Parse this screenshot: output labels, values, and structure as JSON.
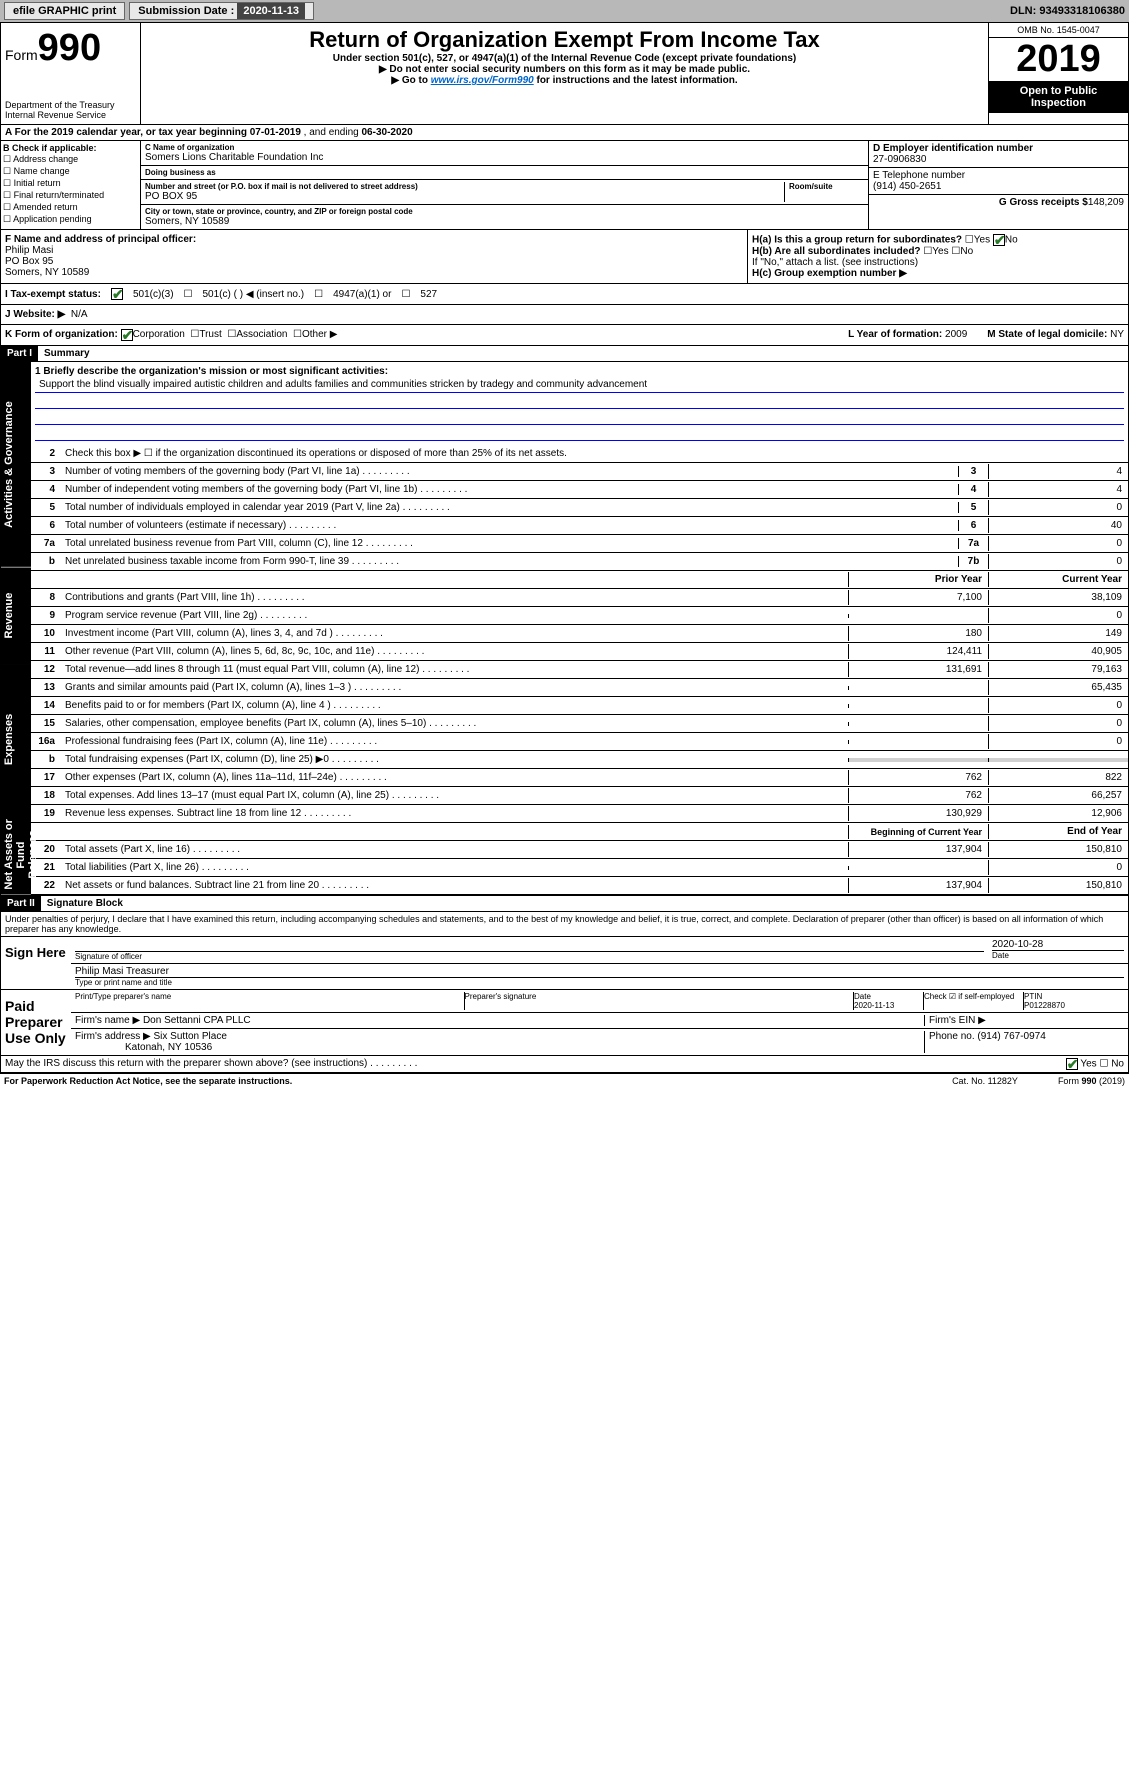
{
  "topbar": {
    "efile_label": "efile GRAPHIC print",
    "submission_label": "Submission Date :",
    "submission_date": "2020-11-13",
    "dln_label": "DLN:",
    "dln": "93493318106380"
  },
  "header": {
    "form_word": "Form",
    "form_num": "990",
    "dept": "Department of the Treasury\nInternal Revenue Service",
    "title": "Return of Organization Exempt From Income Tax",
    "sub1": "Under section 501(c), 527, or 4947(a)(1) of the Internal Revenue Code (except private foundations)",
    "sub2": "▶ Do not enter social security numbers on this form as it may be made public.",
    "sub3_pre": "▶ Go to ",
    "sub3_link": "www.irs.gov/Form990",
    "sub3_post": " for instructions and the latest information.",
    "omb": "OMB No. 1545-0047",
    "year": "2019",
    "inspection": "Open to Public Inspection"
  },
  "row_a": {
    "prefix": "A For the 2019 calendar year, or tax year beginning ",
    "begin": "07-01-2019",
    "mid": " , and ending ",
    "end": "06-30-2020"
  },
  "col_b": {
    "title": "B Check if applicable:",
    "items": [
      "Address change",
      "Name change",
      "Initial return",
      "Final return/terminated",
      "Amended return",
      "Application pending"
    ]
  },
  "col_c": {
    "name_lbl": "C Name of organization",
    "name": "Somers Lions Charitable Foundation Inc",
    "dba_lbl": "Doing business as",
    "addr_lbl": "Number and street (or P.O. box if mail is not delivered to street address)",
    "room_lbl": "Room/suite",
    "addr": "PO BOX 95",
    "city_lbl": "City or town, state or province, country, and ZIP or foreign postal code",
    "city": "Somers, NY  10589"
  },
  "col_d": {
    "ein_lbl": "D Employer identification number",
    "ein": "27-0906830",
    "phone_lbl": "E Telephone number",
    "phone": "(914) 450-2651",
    "gross_lbl": "G Gross receipts $",
    "gross": "148,209"
  },
  "officer": {
    "lbl": "F  Name and address of principal officer:",
    "name": "Philip Masi",
    "addr1": "PO Box 95",
    "addr2": "Somers, NY  10589"
  },
  "h": {
    "a_lbl": "H(a)  Is this a group return for subordinates?",
    "b_lbl": "H(b)  Are all subordinates included?",
    "b_note": "If \"No,\" attach a list. (see instructions)",
    "c_lbl": "H(c)  Group exemption number ▶",
    "yes": "Yes",
    "no": "No"
  },
  "tax_status": {
    "lbl": "I  Tax-exempt status:",
    "opt1": "501(c)(3)",
    "opt2": "501(c) (  ) ◀ (insert no.)",
    "opt3": "4947(a)(1) or",
    "opt4": "527"
  },
  "website": {
    "lbl": "J  Website: ▶",
    "val": "N/A"
  },
  "k_row": {
    "lbl": "K Form of organization:",
    "opts": [
      "Corporation",
      "Trust",
      "Association",
      "Other ▶"
    ],
    "l_lbl": "L Year of formation:",
    "l_val": "2009",
    "m_lbl": "M State of legal domicile:",
    "m_val": "NY"
  },
  "part1": {
    "header": "Part I",
    "title": "Summary",
    "mission_lbl": "1  Briefly describe the organization's mission or most significant activities:",
    "mission": "Support the blind visually impaired autistic children and adults families and communities stricken by tradegy and community advancement",
    "line2": "Check this box ▶ ☐  if the organization discontinued its operations or disposed of more than 25% of its net assets.",
    "sections": {
      "gov_label": "Activities & Governance",
      "rev_label": "Revenue",
      "exp_label": "Expenses",
      "net_label": "Net Assets or Fund Balances"
    },
    "lines_gov": [
      {
        "n": "3",
        "d": "Number of voting members of the governing body (Part VI, line 1a)",
        "c": "3",
        "v": "4"
      },
      {
        "n": "4",
        "d": "Number of independent voting members of the governing body (Part VI, line 1b)",
        "c": "4",
        "v": "4"
      },
      {
        "n": "5",
        "d": "Total number of individuals employed in calendar year 2019 (Part V, line 2a)",
        "c": "5",
        "v": "0"
      },
      {
        "n": "6",
        "d": "Total number of volunteers (estimate if necessary)",
        "c": "6",
        "v": "40"
      },
      {
        "n": "7a",
        "d": "Total unrelated business revenue from Part VIII, column (C), line 12",
        "c": "7a",
        "v": "0"
      },
      {
        "n": "b",
        "d": "Net unrelated business taxable income from Form 990-T, line 39",
        "c": "7b",
        "v": "0"
      }
    ],
    "col_prior": "Prior Year",
    "col_current": "Current Year",
    "lines_rev": [
      {
        "n": "8",
        "d": "Contributions and grants (Part VIII, line 1h)",
        "p": "7,100",
        "c": "38,109"
      },
      {
        "n": "9",
        "d": "Program service revenue (Part VIII, line 2g)",
        "p": "",
        "c": "0"
      },
      {
        "n": "10",
        "d": "Investment income (Part VIII, column (A), lines 3, 4, and 7d )",
        "p": "180",
        "c": "149"
      },
      {
        "n": "11",
        "d": "Other revenue (Part VIII, column (A), lines 5, 6d, 8c, 9c, 10c, and 11e)",
        "p": "124,411",
        "c": "40,905"
      },
      {
        "n": "12",
        "d": "Total revenue—add lines 8 through 11 (must equal Part VIII, column (A), line 12)",
        "p": "131,691",
        "c": "79,163"
      }
    ],
    "lines_exp": [
      {
        "n": "13",
        "d": "Grants and similar amounts paid (Part IX, column (A), lines 1–3 )",
        "p": "",
        "c": "65,435"
      },
      {
        "n": "14",
        "d": "Benefits paid to or for members (Part IX, column (A), line 4 )",
        "p": "",
        "c": "0"
      },
      {
        "n": "15",
        "d": "Salaries, other compensation, employee benefits (Part IX, column (A), lines 5–10)",
        "p": "",
        "c": "0"
      },
      {
        "n": "16a",
        "d": "Professional fundraising fees (Part IX, column (A), line 11e)",
        "p": "",
        "c": "0"
      },
      {
        "n": "b",
        "d": "Total fundraising expenses (Part IX, column (D), line 25) ▶0",
        "p": "shade",
        "c": "shade"
      },
      {
        "n": "17",
        "d": "Other expenses (Part IX, column (A), lines 11a–11d, 11f–24e)",
        "p": "762",
        "c": "822"
      },
      {
        "n": "18",
        "d": "Total expenses. Add lines 13–17 (must equal Part IX, column (A), line 25)",
        "p": "762",
        "c": "66,257"
      },
      {
        "n": "19",
        "d": "Revenue less expenses. Subtract line 18 from line 12",
        "p": "130,929",
        "c": "12,906"
      }
    ],
    "col_begin": "Beginning of Current Year",
    "col_end": "End of Year",
    "lines_net": [
      {
        "n": "20",
        "d": "Total assets (Part X, line 16)",
        "p": "137,904",
        "c": "150,810"
      },
      {
        "n": "21",
        "d": "Total liabilities (Part X, line 26)",
        "p": "",
        "c": "0"
      },
      {
        "n": "22",
        "d": "Net assets or fund balances. Subtract line 21 from line 20",
        "p": "137,904",
        "c": "150,810"
      }
    ]
  },
  "part2": {
    "header": "Part II",
    "title": "Signature Block",
    "perjury": "Under penalties of perjury, I declare that I have examined this return, including accompanying schedules and statements, and to the best of my knowledge and belief, it is true, correct, and complete. Declaration of preparer (other than officer) is based on all information of which preparer has any knowledge.",
    "sign_here": "Sign Here",
    "sig_officer_lbl": "Signature of officer",
    "date_lbl": "Date",
    "sig_date": "2020-10-28",
    "officer_name": "Philip Masi  Treasurer",
    "type_name_lbl": "Type or print name and title",
    "paid_prep": "Paid Preparer Use Only",
    "prep_name_lbl": "Print/Type preparer's name",
    "prep_sig_lbl": "Preparer's signature",
    "prep_date": "2020-11-13",
    "check_self": "Check ☑ if self-employed",
    "ptin_lbl": "PTIN",
    "ptin": "P01228870",
    "firm_name_lbl": "Firm's name   ▶",
    "firm_name": "Don Settanni CPA PLLC",
    "firm_ein_lbl": "Firm's EIN ▶",
    "firm_addr_lbl": "Firm's address ▶",
    "firm_addr": "Six Sutton Place",
    "firm_city": "Katonah, NY  10536",
    "firm_phone_lbl": "Phone no.",
    "firm_phone": "(914) 767-0974",
    "discuss": "May the IRS discuss this return with the preparer shown above? (see instructions)",
    "paperwork": "For Paperwork Reduction Act Notice, see the separate instructions.",
    "cat": "Cat. No. 11282Y",
    "form_footer": "Form 990 (2019)"
  }
}
